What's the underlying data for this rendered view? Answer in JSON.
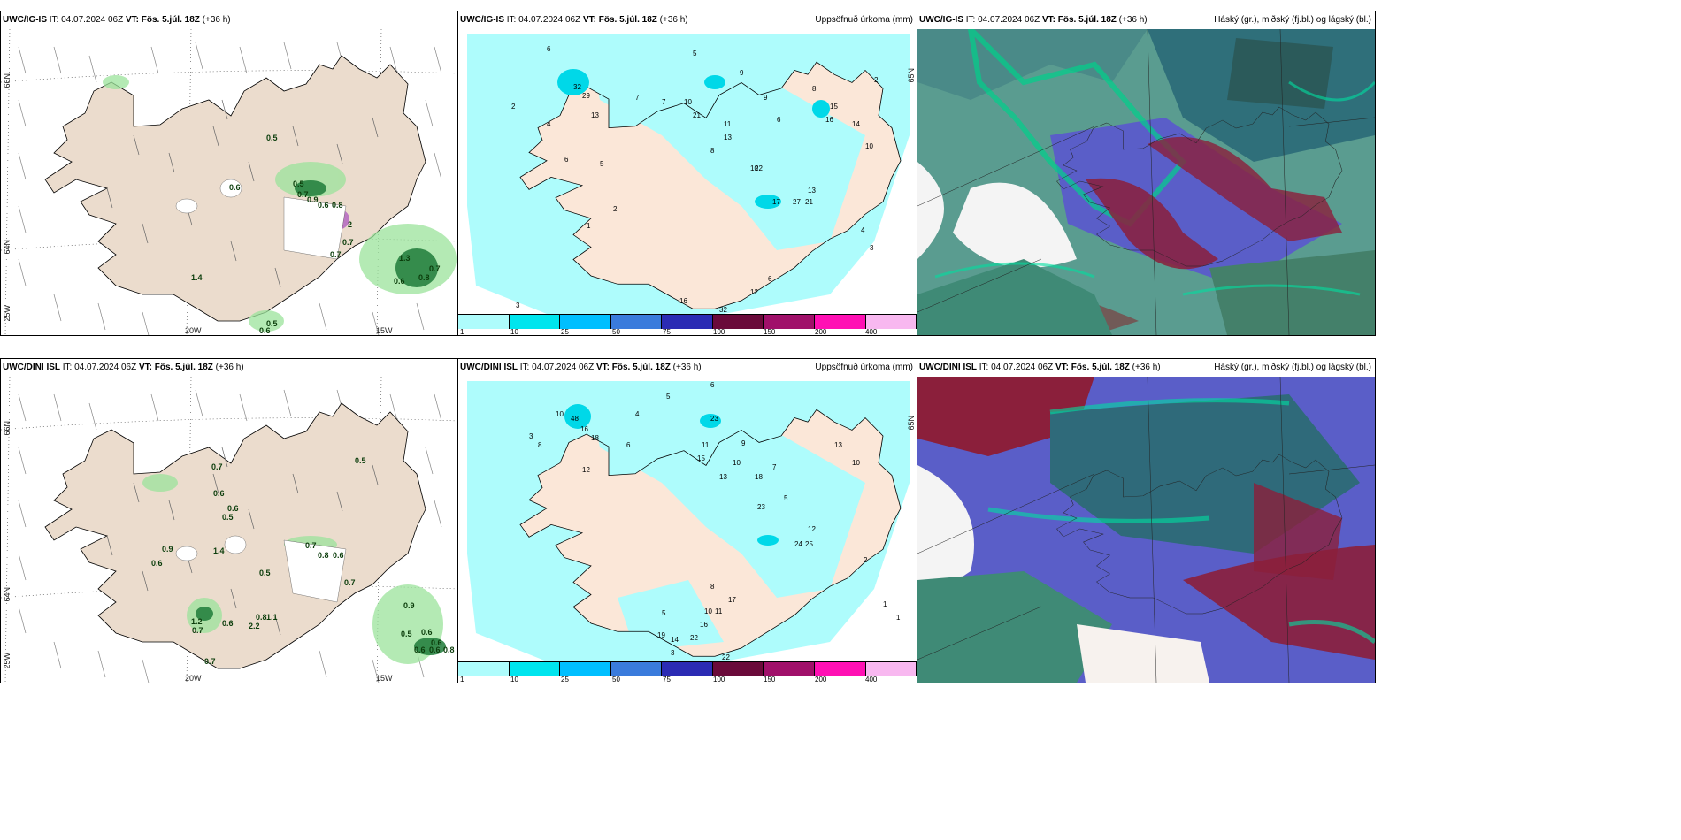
{
  "legend": {
    "colors": [
      "#aefcfc",
      "#00e5ee",
      "#00bfff",
      "#3a7bdc",
      "#2b2bb4",
      "#6a0a3a",
      "#a0106a",
      "#ff10b4",
      "#f8b8f0"
    ],
    "ticks": [
      "1",
      "10",
      "25",
      "50",
      "75",
      "100",
      "150",
      "200",
      "400"
    ]
  },
  "rows": [
    {
      "model": "UWC/IG-IS",
      "it_label": "IT:",
      "it_value": "04.07.2024 06Z",
      "vt_label": "VT:",
      "vt_value": "Fös. 5.júl. 18Z",
      "lead": "(+36 h)",
      "precip_title": "Uppsöfnuð úrkoma (mm)",
      "cloud_title": "Háský (gr.), miðský (fj.bl.) og lágský (bl.)",
      "axis": {
        "lat66": "66N",
        "lat64": "64N",
        "lon25": "25W",
        "lon20": "20W",
        "lon15": "15W",
        "lat65": "65N"
      },
      "wind_values": [
        "0.5",
        "0.6",
        "0.5",
        "0.7",
        "0.9",
        "0.6",
        "0.8",
        "2",
        "0.7",
        "0.7",
        "1.3",
        "0.6",
        "0.8",
        "0.7",
        "1.4",
        "0.5",
        "0.6"
      ],
      "precip_values": [
        "6",
        "5",
        "7",
        "13",
        "9",
        "32",
        "29",
        "2",
        "4",
        "7",
        "10",
        "6",
        "5",
        "8",
        "21",
        "11",
        "13",
        "9",
        "6",
        "10",
        "8",
        "15",
        "16",
        "14",
        "10",
        "22",
        "17",
        "27",
        "21",
        "13",
        "2",
        "4",
        "3",
        "12",
        "6",
        "2",
        "1",
        "16",
        "3",
        "32"
      ]
    },
    {
      "model": "UWC/DINI ISL",
      "it_label": "IT:",
      "it_value": "04.07.2024 06Z",
      "vt_label": "VT:",
      "vt_value": "Fös. 5.júl. 18Z",
      "lead": "(+36 h)",
      "precip_title": "Uppsöfnuð úrkoma (mm)",
      "cloud_title": "Háský (gr.), miðský (fj.bl.) og lágský (bl.)",
      "axis": {
        "lat66": "66N",
        "lat64": "64N",
        "lon25": "25W",
        "lon20": "20W",
        "lon15": "15W",
        "lat65": "65N"
      },
      "wind_values": [
        "0.7",
        "0.6",
        "0.6",
        "0.5",
        "0.5",
        "0.9",
        "0.6",
        "1.4",
        "0.7",
        "0.8",
        "0.6",
        "0.5",
        "0.7",
        "1.2",
        "0.7",
        "0.6",
        "2.2",
        "0.8",
        "1.1",
        "0.7",
        "0.9",
        "0.5",
        "0.6",
        "0.6",
        "0.8",
        "0.6",
        "0.6"
      ],
      "precip_values": [
        "6",
        "4",
        "5",
        "10",
        "48",
        "16",
        "18",
        "3",
        "8",
        "6",
        "12",
        "11",
        "15",
        "23",
        "9",
        "13",
        "10",
        "18",
        "7",
        "23",
        "5",
        "12",
        "24",
        "25",
        "13",
        "10",
        "8",
        "17",
        "19",
        "14",
        "22",
        "16",
        "10",
        "11",
        "22",
        "3",
        "5",
        "2",
        "1",
        "1"
      ]
    }
  ]
}
